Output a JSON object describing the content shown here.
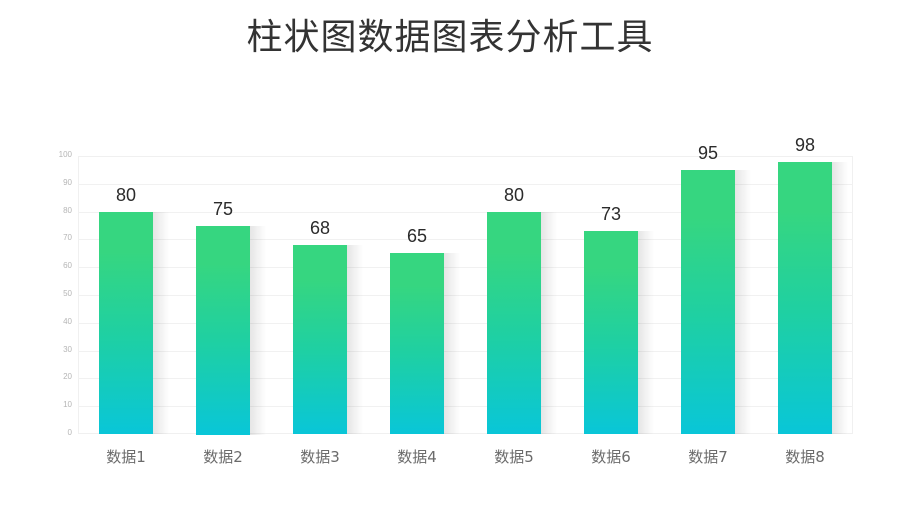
{
  "title": "柱状图数据图表分析工具",
  "chart_data": {
    "type": "bar",
    "title": "柱状图数据图表分析工具",
    "categories": [
      "数据1",
      "数据2",
      "数据3",
      "数据4",
      "数据5",
      "数据6",
      "数据7",
      "数据8"
    ],
    "values": [
      80,
      75,
      68,
      65,
      80,
      73,
      95,
      98
    ],
    "xlabel": "",
    "ylabel": "",
    "ylim": [
      0,
      100
    ],
    "yticks": [
      0,
      10,
      20,
      30,
      40,
      50,
      60,
      70,
      80,
      90,
      100
    ],
    "grid": true,
    "data_labels": true,
    "legend": null,
    "colors": {
      "bar_top": "#36d680",
      "bar_bottom": "#09c6d8"
    }
  }
}
